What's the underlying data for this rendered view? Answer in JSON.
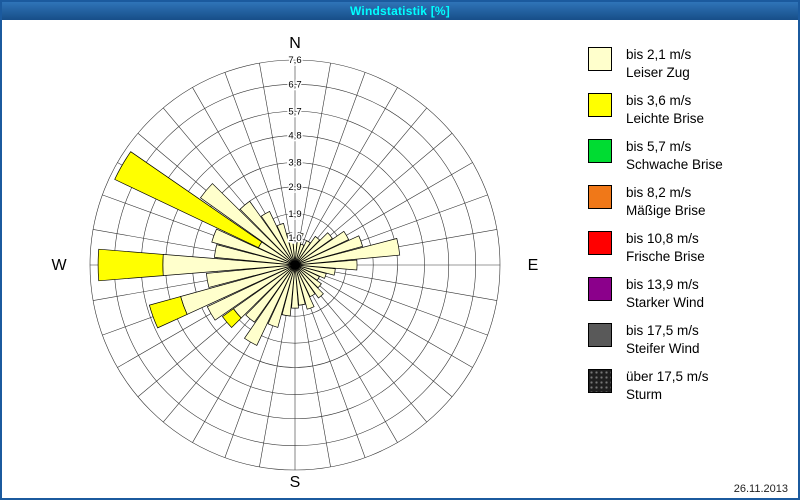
{
  "window": {
    "title": "Windstatistik [%]",
    "date": "26.11.2013"
  },
  "colors": {
    "title_bar": "#1B5A9E",
    "title_text": "#00FFFF",
    "frame_border": "#1B5A9E",
    "grid": "#333333",
    "background": "#FFFFFF"
  },
  "chart_data": {
    "type": "windrose",
    "title": "Windstatistik [%]",
    "unit": "%",
    "compass": {
      "north": "N",
      "east": "E",
      "south": "S",
      "west": "W"
    },
    "max_value": 7.6,
    "ring_values": [
      1.0,
      1.9,
      2.9,
      3.8,
      4.8,
      5.7,
      6.7,
      7.6
    ],
    "ring_labels": [
      "1,0",
      "1,9",
      "2,9",
      "3,8",
      "4,8",
      "5,7",
      "6,7",
      "7,6"
    ],
    "sector_width_deg": 10,
    "directions_deg": [
      0,
      10,
      20,
      30,
      40,
      50,
      60,
      70,
      80,
      90,
      100,
      110,
      120,
      130,
      140,
      150,
      160,
      170,
      180,
      190,
      200,
      210,
      220,
      230,
      240,
      250,
      260,
      270,
      280,
      290,
      300,
      310,
      320,
      330,
      340,
      350
    ],
    "series": [
      {
        "name": "bis 2,1 m/s",
        "label": "Leiser Zug",
        "color": "#FFFFCC",
        "values": [
          1.0,
          1.2,
          0.8,
          1.0,
          1.3,
          1.7,
          2.2,
          2.6,
          3.9,
          2.3,
          1.5,
          1.2,
          1.0,
          1.2,
          1.5,
          1.3,
          1.7,
          1.5,
          1.6,
          1.9,
          2.4,
          3.3,
          2.6,
          2.8,
          3.6,
          4.4,
          3.3,
          4.9,
          3.0,
          3.2,
          1.5,
          4.3,
          2.9,
          2.2,
          1.6,
          1.2
        ]
      },
      {
        "name": "bis 3,6 m/s",
        "label": "Leichte Brise",
        "color": "#FFFF00",
        "values": [
          0,
          0,
          0,
          0,
          0,
          0,
          0,
          0,
          0,
          0,
          0,
          0,
          0,
          0,
          0,
          0,
          0,
          0,
          0,
          0,
          0,
          0,
          0,
          0.5,
          0,
          1.2,
          0,
          2.4,
          0,
          0,
          5.9,
          0,
          0,
          0,
          0,
          0
        ]
      }
    ],
    "legend": [
      {
        "speed": "bis 2,1 m/s",
        "name": "Leiser Zug",
        "color": "#FFFFCC"
      },
      {
        "speed": "bis 3,6 m/s",
        "name": "Leichte Brise",
        "color": "#FFFF00"
      },
      {
        "speed": "bis 5,7 m/s",
        "name": "Schwache Brise",
        "color": "#00DC32"
      },
      {
        "speed": "bis 8,2 m/s",
        "name": "Mäßige Brise",
        "color": "#F07818"
      },
      {
        "speed": "bis 10,8 m/s",
        "name": "Frische Brise",
        "color": "#FF0000"
      },
      {
        "speed": "bis 13,9 m/s",
        "name": "Starker Wind",
        "color": "#8B008B"
      },
      {
        "speed": "bis 17,5 m/s",
        "name": "Steifer Wind",
        "color": "#595959"
      },
      {
        "speed": "über 17,5 m/s",
        "name": "Sturm",
        "color": "#1F1F1F",
        "pattern": "dots"
      }
    ]
  }
}
